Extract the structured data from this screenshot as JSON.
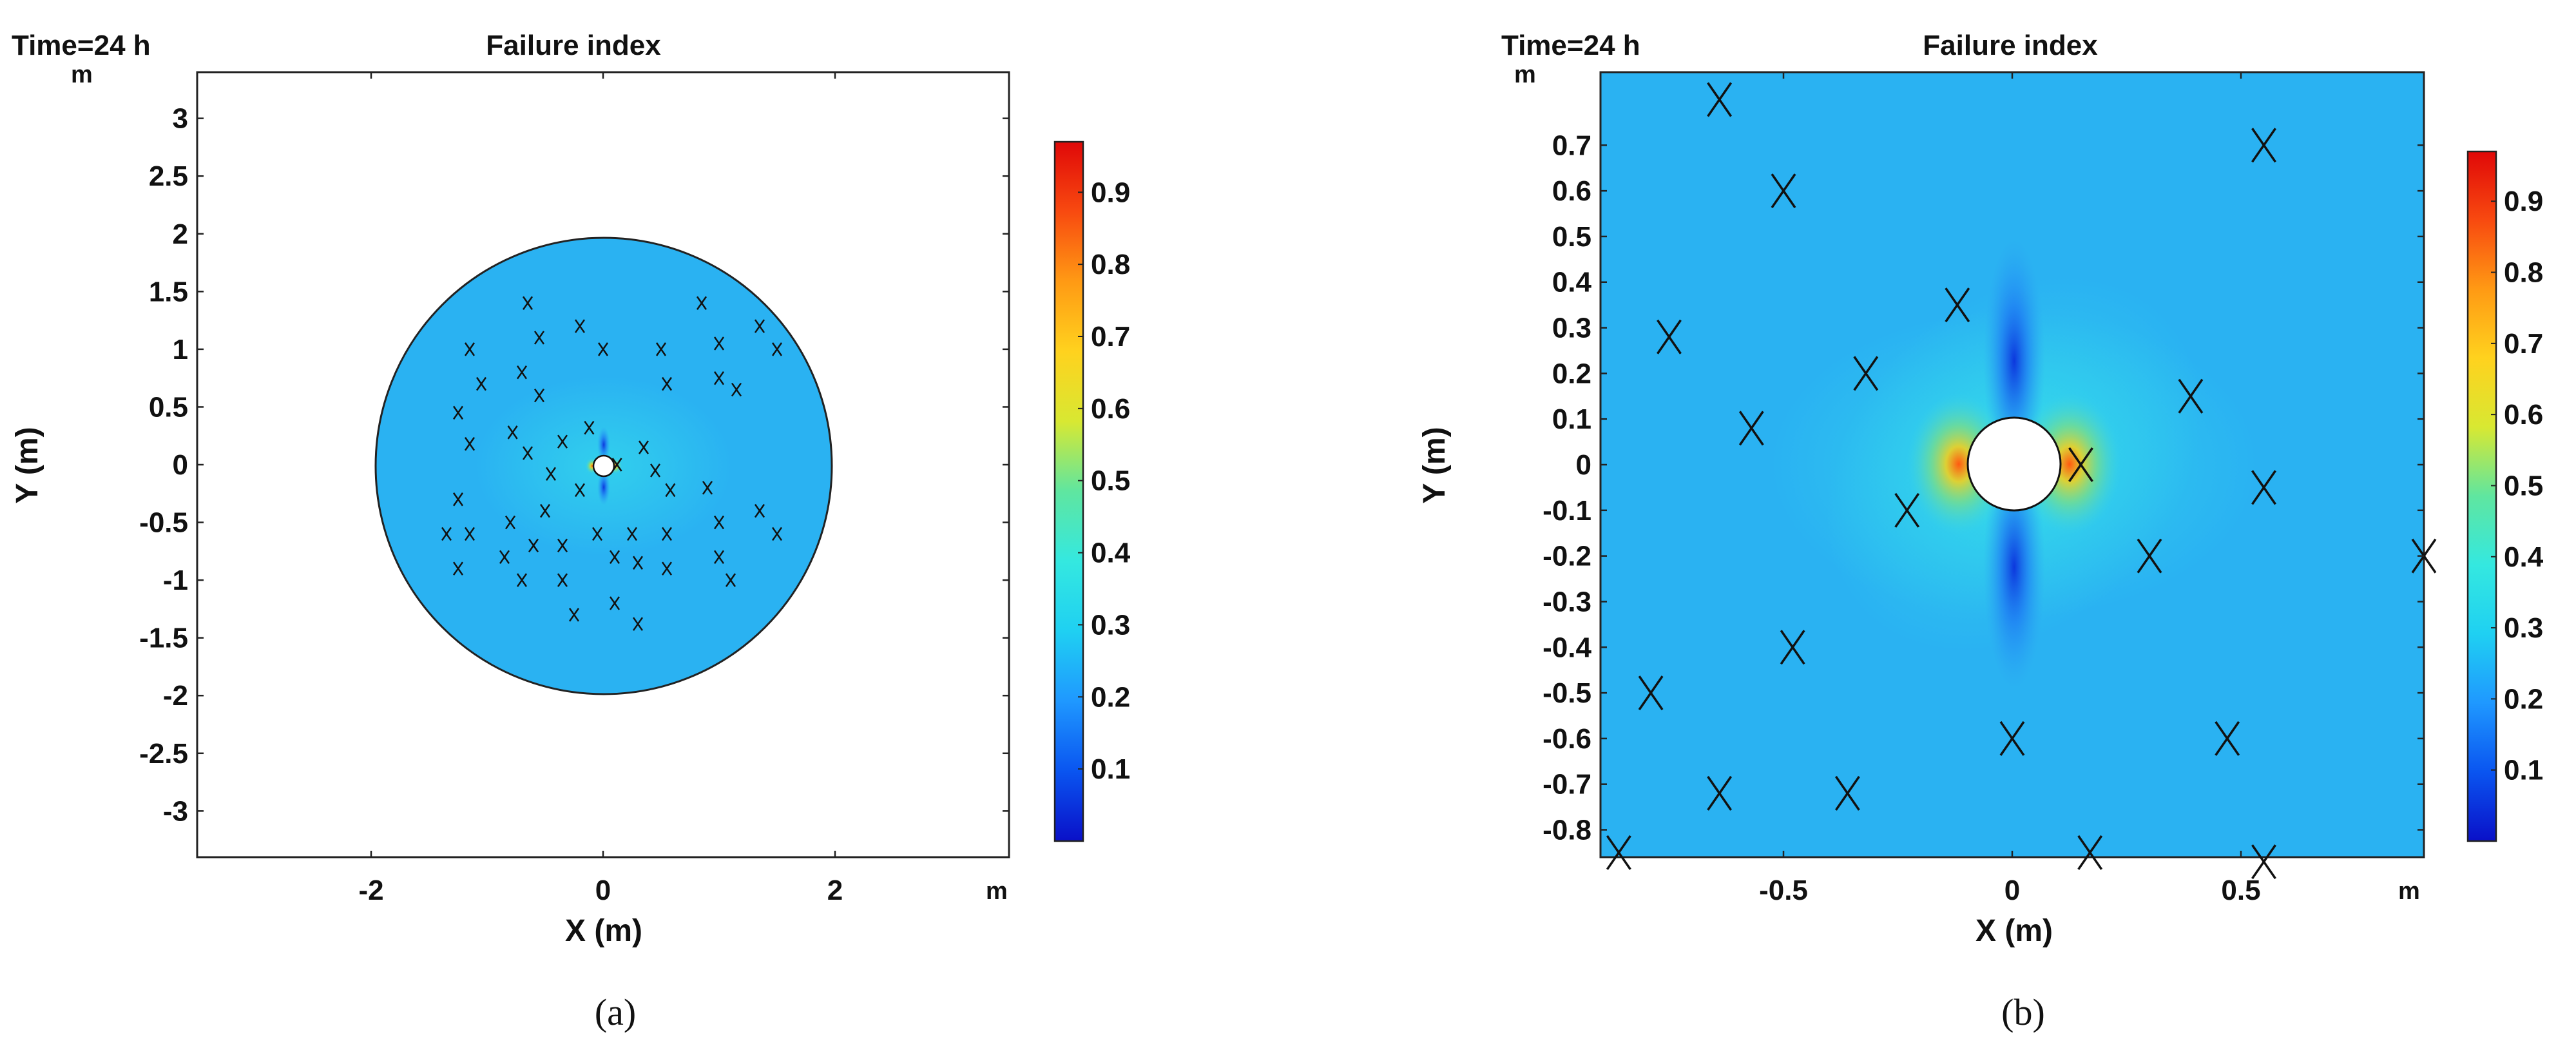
{
  "chart_data": [
    {
      "type": "heatmap",
      "panel_caption": "(a)",
      "time_label": "Time=24 h",
      "title": "Failure index",
      "unit_corner_y": "m",
      "unit_corner_x": "m",
      "xlabel": "X (m)",
      "ylabel": "Y (m)",
      "xlim": [
        -3.5,
        3.5
      ],
      "ylim": [
        -3.4,
        3.4
      ],
      "xticks": [
        -2,
        0,
        2
      ],
      "yticks": [
        3,
        2.5,
        2,
        1.5,
        1,
        0.5,
        0,
        -0.5,
        -1,
        -1.5,
        -2,
        -2.5,
        -3
      ],
      "domain_radius": 2,
      "borehole_radius": 0.1,
      "background_value": 0.3,
      "colorbar": {
        "min": 0,
        "max": 0.97,
        "ticks": [
          0.9,
          0.8,
          0.7,
          0.6,
          0.5,
          0.4,
          0.3,
          0.2,
          0.1
        ]
      },
      "fracture_markers": [
        [
          -0.65,
          1.4
        ],
        [
          -0.2,
          1.2
        ],
        [
          0.85,
          1.4
        ],
        [
          1.35,
          1.2
        ],
        [
          -1.15,
          1.0
        ],
        [
          -0.55,
          1.1
        ],
        [
          0,
          1.0
        ],
        [
          0.5,
          1.0
        ],
        [
          1.0,
          1.05
        ],
        [
          1.5,
          1.0
        ],
        [
          -1.05,
          0.7
        ],
        [
          -0.7,
          0.8
        ],
        [
          -0.55,
          0.6
        ],
        [
          0.55,
          0.7
        ],
        [
          1.0,
          0.75
        ],
        [
          1.15,
          0.65
        ],
        [
          -1.25,
          0.45
        ],
        [
          -0.78,
          0.28
        ],
        [
          -0.65,
          0.1
        ],
        [
          -0.35,
          0.2
        ],
        [
          -0.12,
          0.32
        ],
        [
          0.35,
          0.15
        ],
        [
          -1.15,
          0.18
        ],
        [
          -0.45,
          -0.08
        ],
        [
          0.12,
          0.0
        ],
        [
          0.45,
          -0.05
        ],
        [
          -0.2,
          -0.22
        ],
        [
          0.58,
          -0.22
        ],
        [
          0.9,
          -0.2
        ],
        [
          -1.25,
          -0.3
        ],
        [
          -0.5,
          -0.4
        ],
        [
          1.35,
          -0.4
        ],
        [
          -1.35,
          -0.6
        ],
        [
          -1.15,
          -0.6
        ],
        [
          -0.8,
          -0.5
        ],
        [
          -0.6,
          -0.7
        ],
        [
          -0.35,
          -0.7
        ],
        [
          -0.05,
          -0.6
        ],
        [
          0.25,
          -0.6
        ],
        [
          0.55,
          -0.6
        ],
        [
          1.0,
          -0.5
        ],
        [
          1.5,
          -0.6
        ],
        [
          -1.25,
          -0.9
        ],
        [
          -0.85,
          -0.8
        ],
        [
          -0.7,
          -1.0
        ],
        [
          -0.35,
          -1.0
        ],
        [
          0.1,
          -0.8
        ],
        [
          0.3,
          -0.85
        ],
        [
          0.55,
          -0.9
        ],
        [
          1.0,
          -0.8
        ],
        [
          1.1,
          -1.0
        ],
        [
          -0.25,
          -1.3
        ],
        [
          0.1,
          -1.2
        ],
        [
          0.3,
          -1.38
        ]
      ]
    },
    {
      "type": "heatmap",
      "panel_caption": "(b)",
      "time_label": "Time=24 h",
      "title": "Failure index",
      "unit_corner_y": "m",
      "unit_corner_x": "m",
      "xlabel": "X (m)",
      "ylabel": "Y (m)",
      "xlim": [
        -0.9,
        0.9
      ],
      "ylim": [
        -0.86,
        0.86
      ],
      "xticks": [
        -0.5,
        0,
        0.5
      ],
      "yticks": [
        0.7,
        0.6,
        0.5,
        0.4,
        0.3,
        0.2,
        0.1,
        0,
        -0.1,
        -0.2,
        -0.3,
        -0.4,
        -0.5,
        -0.6,
        -0.7,
        -0.8
      ],
      "borehole_radius": 0.1,
      "background_value": 0.3,
      "colorbar": {
        "min": 0,
        "max": 0.97,
        "ticks": [
          0.9,
          0.8,
          0.7,
          0.6,
          0.5,
          0.4,
          0.3,
          0.2,
          0.1
        ]
      },
      "fracture_markers": [
        [
          -0.64,
          0.8
        ],
        [
          -0.5,
          0.6
        ],
        [
          0.55,
          0.7
        ],
        [
          -0.12,
          0.35
        ],
        [
          -0.75,
          0.28
        ],
        [
          -0.32,
          0.2
        ],
        [
          0.39,
          0.15
        ],
        [
          -0.57,
          0.08
        ],
        [
          0.15,
          0.0
        ],
        [
          -0.23,
          -0.1
        ],
        [
          0.55,
          -0.05
        ],
        [
          0.3,
          -0.2
        ],
        [
          0.9,
          -0.2
        ],
        [
          -0.48,
          -0.4
        ],
        [
          -0.79,
          -0.5
        ],
        [
          0,
          -0.6
        ],
        [
          0.47,
          -0.6
        ],
        [
          -0.64,
          -0.72
        ],
        [
          -0.36,
          -0.72
        ],
        [
          0.17,
          -0.85
        ],
        [
          -0.86,
          -0.85
        ],
        [
          0.55,
          -0.87
        ]
      ]
    }
  ]
}
